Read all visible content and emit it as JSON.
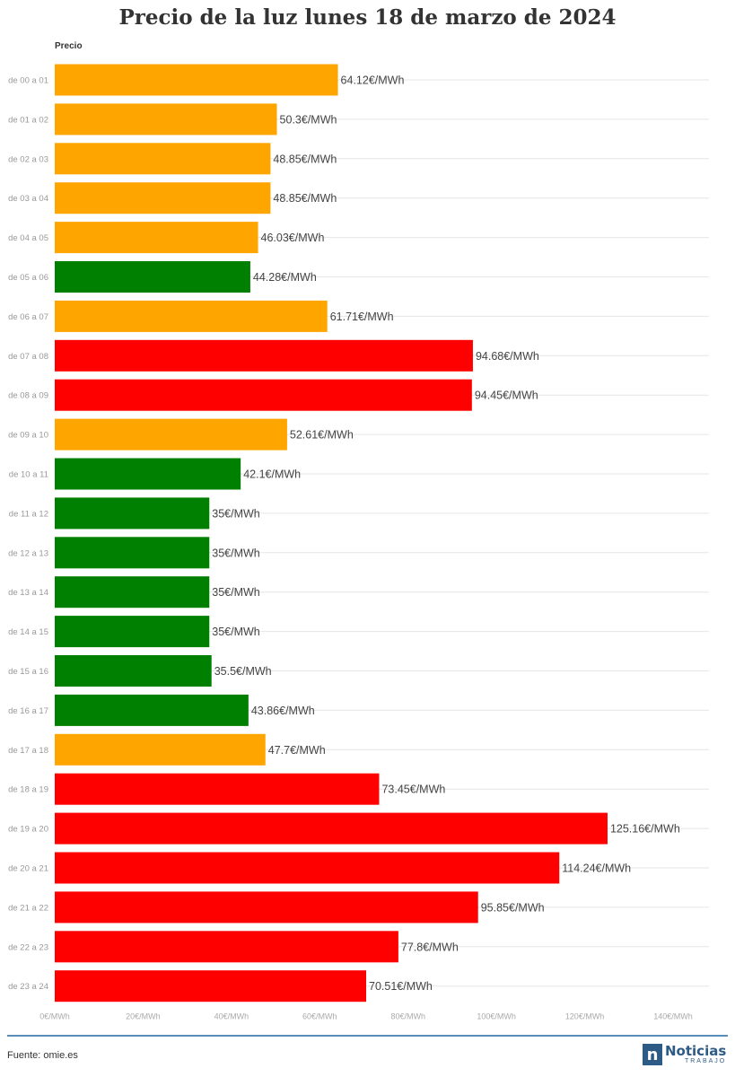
{
  "chart_data": {
    "type": "bar",
    "orientation": "horizontal",
    "title": "Precio de la luz lunes 18 de marzo de 2024",
    "series_label": "Precio",
    "categories": [
      "de 00 a 01",
      "de 01 a 02",
      "de 02 a 03",
      "de 03 a 04",
      "de 04 a 05",
      "de 05 a 06",
      "de 06 a 07",
      "de 07 a 08",
      "de 08 a 09",
      "de 09 a 10",
      "de 10 a 11",
      "de 11 a 12",
      "de 12 a 13",
      "de 13 a 14",
      "de 14 a 15",
      "de 15 a 16",
      "de 16 a 17",
      "de 17 a 18",
      "de 18 a 19",
      "de 19 a 20",
      "de 20 a 21",
      "de 21 a 22",
      "de 22 a 23",
      "de 23 a 24"
    ],
    "values": [
      64.12,
      50.3,
      48.85,
      48.85,
      46.03,
      44.28,
      61.71,
      94.68,
      94.45,
      52.61,
      42.1,
      35,
      35,
      35,
      35,
      35.5,
      43.86,
      47.7,
      73.45,
      125.16,
      114.24,
      95.85,
      77.8,
      70.51
    ],
    "value_labels": [
      "64.12€/MWh",
      "50.3€/MWh",
      "48.85€/MWh",
      "48.85€/MWh",
      "46.03€/MWh",
      "44.28€/MWh",
      "61.71€/MWh",
      "94.68€/MWh",
      "94.45€/MWh",
      "52.61€/MWh",
      "42.1€/MWh",
      "35€/MWh",
      "35€/MWh",
      "35€/MWh",
      "35€/MWh",
      "35.5€/MWh",
      "43.86€/MWh",
      "47.7€/MWh",
      "73.45€/MWh",
      "125.16€/MWh",
      "114.24€/MWh",
      "95.85€/MWh",
      "77.8€/MWh",
      "70.51€/MWh"
    ],
    "bar_colors": [
      "#ffa500",
      "#ffa500",
      "#ffa500",
      "#ffa500",
      "#ffa500",
      "#008000",
      "#ffa500",
      "#ff0000",
      "#ff0000",
      "#ffa500",
      "#008000",
      "#008000",
      "#008000",
      "#008000",
      "#008000",
      "#008000",
      "#008000",
      "#ffa500",
      "#ff0000",
      "#ff0000",
      "#ff0000",
      "#ff0000",
      "#ff0000",
      "#ff0000"
    ],
    "xlim": [
      0,
      140
    ],
    "x_ticks": [
      0,
      20,
      40,
      60,
      80,
      100,
      120,
      140
    ],
    "x_tick_labels": [
      "0€/MWh",
      "20€/MWh",
      "40€/MWh",
      "60€/MWh",
      "80€/MWh",
      "100€/MWh",
      "120€/MWh",
      "140€/MWh"
    ],
    "grid": true
  },
  "footer": {
    "source": "Fuente: omie.es",
    "logo_mark": "n",
    "logo_main": "Noticias",
    "logo_sub": "TRABAJO"
  }
}
